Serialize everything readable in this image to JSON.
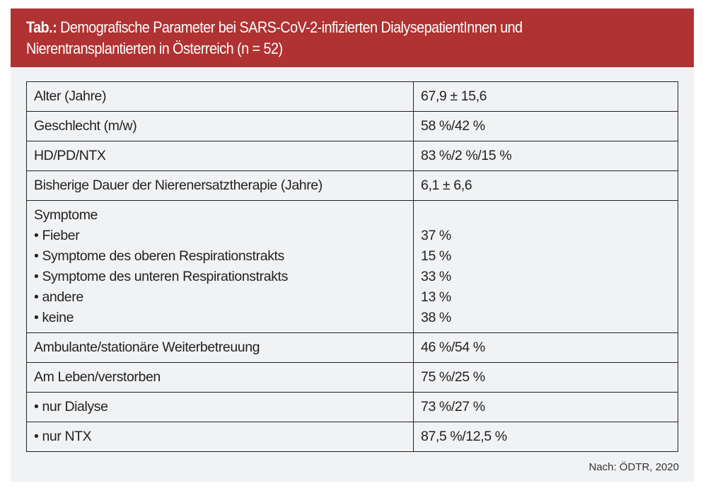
{
  "header": {
    "label": "Tab.:",
    "title": "Demografische Parameter bei SARS-CoV-2-infizierten DialysepatientInnen und",
    "title_line2": "Nierentransplantierten in Österreich (n = 52)"
  },
  "rows": [
    {
      "param": "Alter (Jahre)",
      "value": "67,9 ± 15,6"
    },
    {
      "param": "Geschlecht (m/w)",
      "value": "58 %/42 %"
    },
    {
      "param": "HD/PD/NTX",
      "value": "83 %/2 %/15 %"
    },
    {
      "param": "Bisherige Dauer der Nierenersatztherapie (Jahre)",
      "value": "6,1 ± 6,6"
    }
  ],
  "symptoms": {
    "label": "Symptome",
    "items": [
      {
        "param": "• Fieber",
        "value": "37 %"
      },
      {
        "param": "• Symptome des oberen Respirationstrakts",
        "value": "15 %"
      },
      {
        "param": "• Symptome des unteren Respirationstrakts",
        "value": "33 %"
      },
      {
        "param": "• andere",
        "value": "13 %"
      },
      {
        "param": "• keine",
        "value": "38 %"
      }
    ]
  },
  "rows2": [
    {
      "param": "Ambulante/stationäre Weiterbetreuung",
      "value": "46 %/54 %"
    },
    {
      "param": "Am Leben/verstorben",
      "value": "75 %/25 %"
    },
    {
      "param": "• nur Dialyse",
      "value": "73 %/27 %"
    },
    {
      "param": "• nur NTX",
      "value": "87,5 %/12,5 %"
    }
  ],
  "source": "Nach: ÖDTR, 2020",
  "colors": {
    "header": "#b03232",
    "background": "#f1f2f4"
  }
}
